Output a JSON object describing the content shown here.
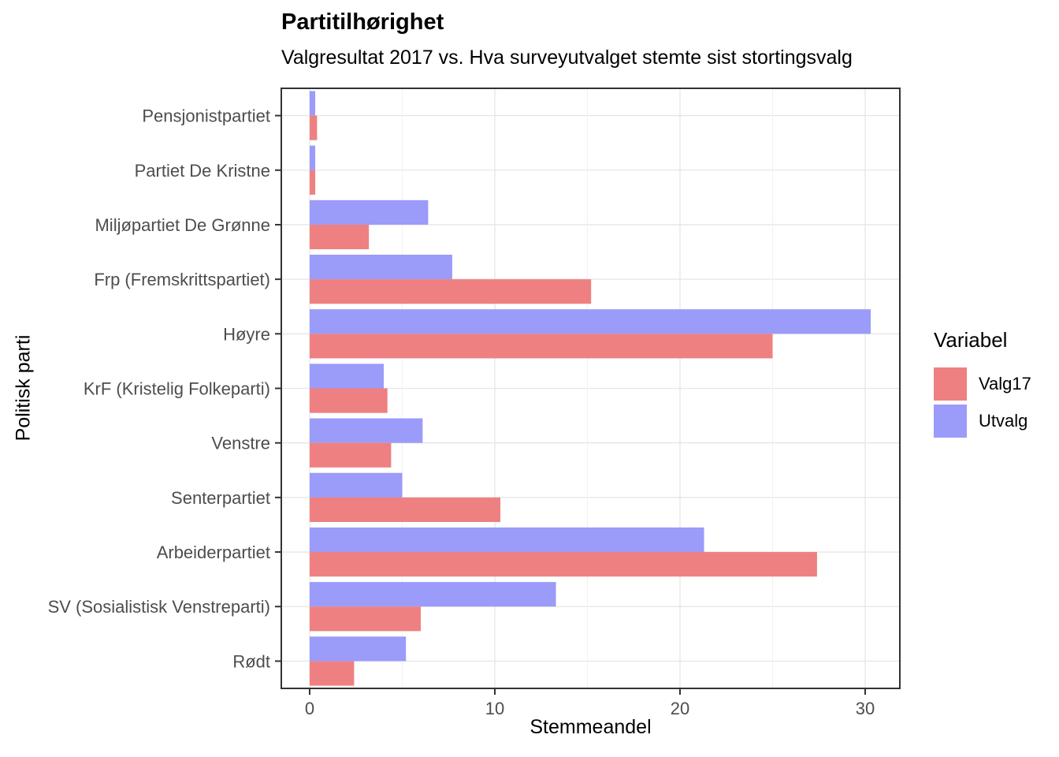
{
  "chart_data": {
    "type": "bar",
    "orientation": "horizontal",
    "title": "Partitilhørighet",
    "subtitle": "Valgresultat 2017 vs. Hva surveyutvalget stemte sist stortingsvalg",
    "xlabel": "Stemmeandel",
    "ylabel": "Politisk parti",
    "legend_title": "Variabel",
    "legend_position": "right",
    "categories": [
      "Pensjonistpartiet",
      "Partiet De Kristne",
      "Miljøpartiet De Grønne",
      "Frp (Fremskrittspartiet)",
      "Høyre",
      "KrF (Kristelig Folkeparti)",
      "Venstre",
      "Senterpartiet",
      "Arbeiderpartiet",
      "SV (Sosialistisk Venstreparti)",
      "Rødt"
    ],
    "series": [
      {
        "name": "Valg17",
        "color": "#EE8082",
        "values": [
          0.4,
          0.3,
          3.2,
          15.2,
          25.0,
          4.2,
          4.4,
          10.3,
          27.4,
          6.0,
          2.4
        ]
      },
      {
        "name": "Utvalg",
        "color": "#9B9BFA",
        "values": [
          0.3,
          0.3,
          6.4,
          7.7,
          30.3,
          4.0,
          6.1,
          5.0,
          21.3,
          13.3,
          5.2
        ]
      }
    ],
    "xticks": [
      0,
      10,
      20,
      30
    ],
    "xminor_gridlines": [
      5,
      15,
      25
    ],
    "xlim": [
      -1.6,
      31.9
    ],
    "grid": true,
    "colors": {
      "grid_major": "#E6E6E6",
      "grid_minor": "#F1F1F1",
      "axis_text": "#4D4D4D",
      "panel_border": "#333333",
      "background": "#FFFFFF"
    }
  }
}
